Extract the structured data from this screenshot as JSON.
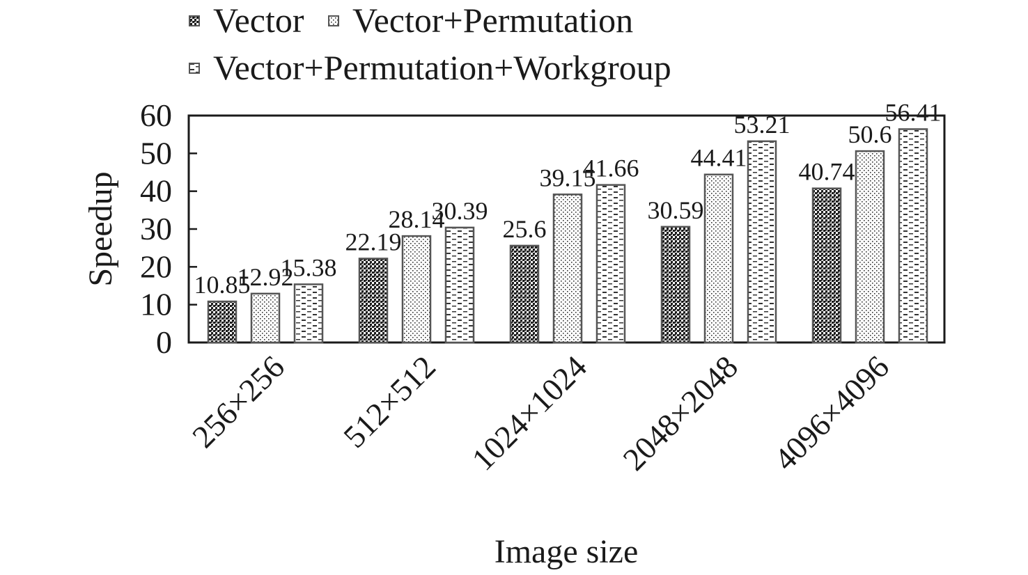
{
  "chart_data": {
    "type": "bar",
    "title": "",
    "xlabel": "Image size",
    "ylabel": "Speedup",
    "ylim": [
      0,
      60
    ],
    "yticks": [
      0,
      10,
      20,
      30,
      40,
      50,
      60
    ],
    "grid": false,
    "legend_placement": "top",
    "categories": [
      "256×256",
      "512×512",
      "1024×1024",
      "2048×2048",
      "4096×4096"
    ],
    "series": [
      {
        "name": "Vector",
        "pattern": "dense-dots",
        "values": [
          10.85,
          22.19,
          25.6,
          30.59,
          40.74
        ]
      },
      {
        "name": "Vector+Permutation",
        "pattern": "sparse-dots",
        "values": [
          12.92,
          28.14,
          39.15,
          44.41,
          50.6
        ]
      },
      {
        "name": "Vector+Permutation+Workgroup",
        "pattern": "dashes",
        "values": [
          15.38,
          30.39,
          41.66,
          53.21,
          56.41
        ]
      }
    ],
    "colors": {
      "ink": "#1a1a1a",
      "bar_outline": "#555555",
      "background": "#ffffff"
    }
  }
}
